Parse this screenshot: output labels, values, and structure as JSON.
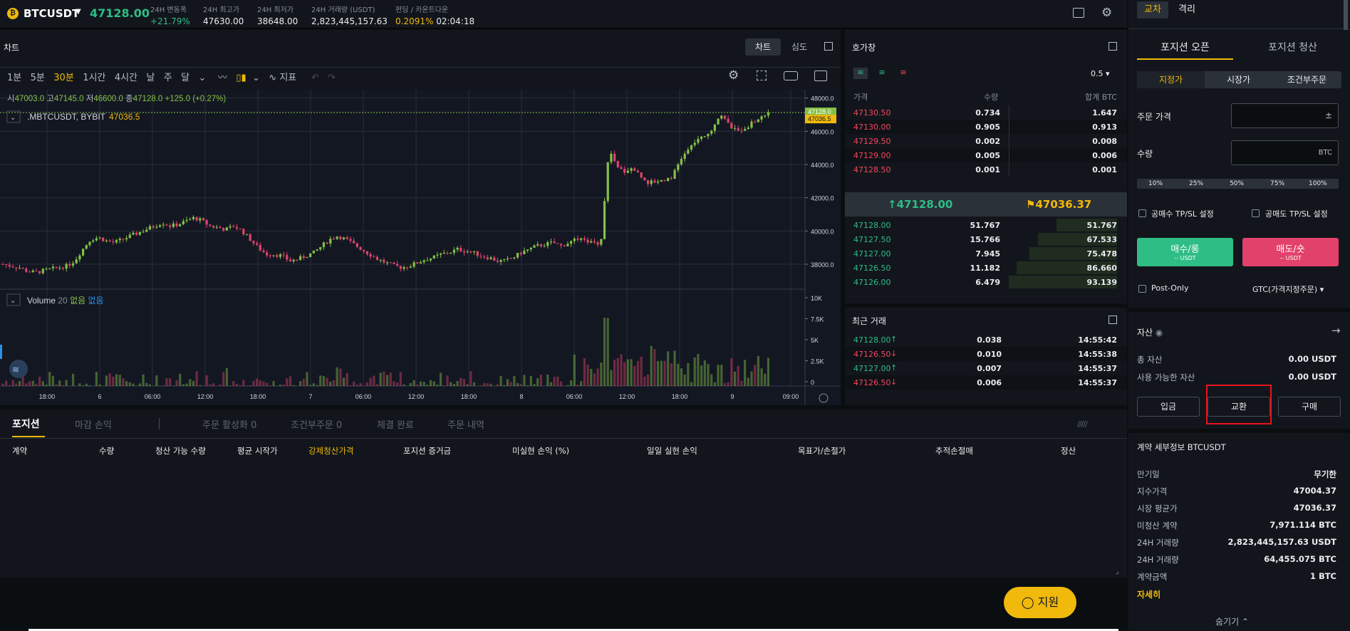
{
  "header": {
    "symbol": "BTCUSDT",
    "price": "47128.00",
    "stats": [
      {
        "label": "24H 변동폭",
        "value": "+21.79%"
      },
      {
        "label": "24H 최고가",
        "value": "47630.00"
      },
      {
        "label": "24H 최저가",
        "value": "38648.00"
      },
      {
        "label": "24H 거래량 (USDT)",
        "value": "2,823,445,157.63"
      },
      {
        "label": "펀딩 / 카운트다운",
        "value": "0.2091%",
        "value2": "02:04:18"
      }
    ]
  },
  "chart": {
    "title": "차트",
    "tabs": [
      "차트",
      "심도"
    ],
    "intervals": [
      "1분",
      "5분",
      "30분",
      "1시간",
      "4시간",
      "날",
      "주",
      "달"
    ],
    "indicator_label": "지표",
    "ohlc": {
      "o_label": "시",
      "o": "47003.0",
      "h_label": "고",
      "h": "47145.0",
      "l_label": "저",
      "l": "46600.0",
      "c_label": "종",
      "c": "47128.0",
      "chg": "+125.0 (+0.27%)"
    },
    "index_label": ".MBTCUSDT, BYBIT",
    "index_value": "47036.5",
    "volume_label": "Volume",
    "volume_period": "20",
    "volume_na1": "없음",
    "volume_na2": "없음",
    "price_badge": "47128.0",
    "index_badge": "47036.5"
  },
  "chart_data": {
    "type": "candlestick",
    "y_ticks": [
      "48000.0",
      "46000.0",
      "44000.0",
      "42000.0",
      "40000.0",
      "38000.0"
    ],
    "volume_ticks": [
      "10K",
      "7.5K",
      "5K",
      "2.5K",
      "0"
    ],
    "x_ticks": [
      "18:00",
      "6",
      "06:00",
      "12:00",
      "18:00",
      "7",
      "06:00",
      "12:00",
      "18:00",
      "8",
      "06:00",
      "12:00",
      "18:00",
      "9",
      "09:00"
    ],
    "ylim": [
      36500,
      48500
    ],
    "price_path": [
      38000,
      37900,
      37800,
      37600,
      37500,
      37600,
      37700,
      37800,
      37900,
      38200,
      38900,
      39500,
      39600,
      39400,
      39300,
      39500,
      39700,
      39900,
      40100,
      40300,
      40500,
      40300,
      40400,
      40600,
      40800,
      40600,
      40300,
      40200,
      40100,
      40300,
      40000,
      39500,
      39000,
      38600,
      38600,
      38500,
      38200,
      38300,
      38500,
      38700,
      39100,
      39500,
      39700,
      39500,
      39200,
      38900,
      38600,
      38300,
      38100,
      37900,
      37800,
      37900,
      38100,
      38300,
      38400,
      38600,
      38700,
      38900,
      38800,
      38700,
      38500,
      38400,
      38200,
      38200,
      38400,
      38700,
      38900,
      39100,
      39200,
      39300,
      39100,
      39300,
      39500,
      39400,
      39300,
      39300,
      44900,
      43800,
      43600,
      43800,
      43300,
      42900,
      43000,
      43100,
      43300,
      44300,
      44900,
      45500,
      45600,
      46200,
      47100,
      46400,
      46000,
      46200,
      46500,
      46800,
      47128
    ]
  },
  "orderbook": {
    "title": "호가창",
    "precision": "0.5",
    "headers": [
      "가격",
      "수량",
      "합계 BTC"
    ],
    "asks": [
      [
        "47130.50",
        "0.734",
        "1.647"
      ],
      [
        "47130.00",
        "0.905",
        "0.913"
      ],
      [
        "47129.50",
        "0.002",
        "0.008"
      ],
      [
        "47129.00",
        "0.005",
        "0.006"
      ],
      [
        "47128.50",
        "0.001",
        "0.001"
      ]
    ],
    "last_price": "47128.00",
    "mark_price": "47036.37",
    "bids": [
      [
        "47128.00",
        "51.767",
        "51.767",
        0.56
      ],
      [
        "47127.50",
        "15.766",
        "67.533",
        0.73
      ],
      [
        "47127.00",
        "7.945",
        "75.478",
        0.81
      ],
      [
        "47126.50",
        "11.182",
        "86.660",
        0.93
      ],
      [
        "47126.00",
        "6.479",
        "93.139",
        1.0
      ]
    ]
  },
  "trades": {
    "title": "최근 거래",
    "rows": [
      [
        "47128.00",
        "0.038",
        "14:55:42",
        "up"
      ],
      [
        "47126.50",
        "0.010",
        "14:55:38",
        "down"
      ],
      [
        "47127.00",
        "0.007",
        "14:55:37",
        "up"
      ],
      [
        "47126.50",
        "0.006",
        "14:55:37",
        "down"
      ]
    ]
  },
  "bottom": {
    "tabs": [
      "포지션",
      "마감 손익",
      "주문 활성화 0",
      "조건부주문 0",
      "체결 완료",
      "주문 내역"
    ],
    "columns": [
      "계약",
      "수량",
      "청산 가능 수량",
      "평균 시작가",
      "강제청산가격",
      "포지션 증거금",
      "미실현 손익 (%)",
      "일일 실현 손익",
      "목표가/손절가",
      "추적손절매",
      "정산"
    ],
    "support": "지원"
  },
  "right": {
    "mode_tabs": [
      "교차",
      "격리"
    ],
    "side_tabs": [
      "포지션 오픈",
      "포지션 청산"
    ],
    "order_types": [
      "지정가",
      "시장가",
      "조건부주문"
    ],
    "price_label": "주문 가격",
    "qty_label": "수량",
    "qty_unit": "BTC",
    "pcts": [
      "10%",
      "25%",
      "50%",
      "75%",
      "100%"
    ],
    "tpsl_buy": "공매수 TP/SL 설정",
    "tpsl_sell": "공매도 TP/SL 설정",
    "buy_label": "매수/롱",
    "buy_sub": "-- USDT",
    "sell_label": "매도/숏",
    "sell_sub": "-- USDT",
    "post_only": "Post-Only",
    "tif": "GTC(가격지정주문)",
    "assets_title": "자산",
    "total_label": "총 자산",
    "total": "0.00 USDT",
    "avail_label": "사용 가능한 자산",
    "avail": "0.00 USDT",
    "asset_buttons": [
      "입금",
      "교환",
      "구매"
    ],
    "contract_title": "계약 세부정보 BTCUSDT",
    "details": [
      [
        "만기일",
        "무기한"
      ],
      [
        "지수가격",
        "47004.37"
      ],
      [
        "시장 평균가",
        "47036.37"
      ],
      [
        "미청산 계약",
        "7,971.114 BTC"
      ],
      [
        "24H 거래량",
        "2,823,445,157.63 USDT"
      ],
      [
        "24H 거래량",
        "64,455.075 BTC"
      ],
      [
        "계약금액",
        "1 BTC"
      ]
    ],
    "more": "자세히",
    "hide": "숨기기"
  }
}
